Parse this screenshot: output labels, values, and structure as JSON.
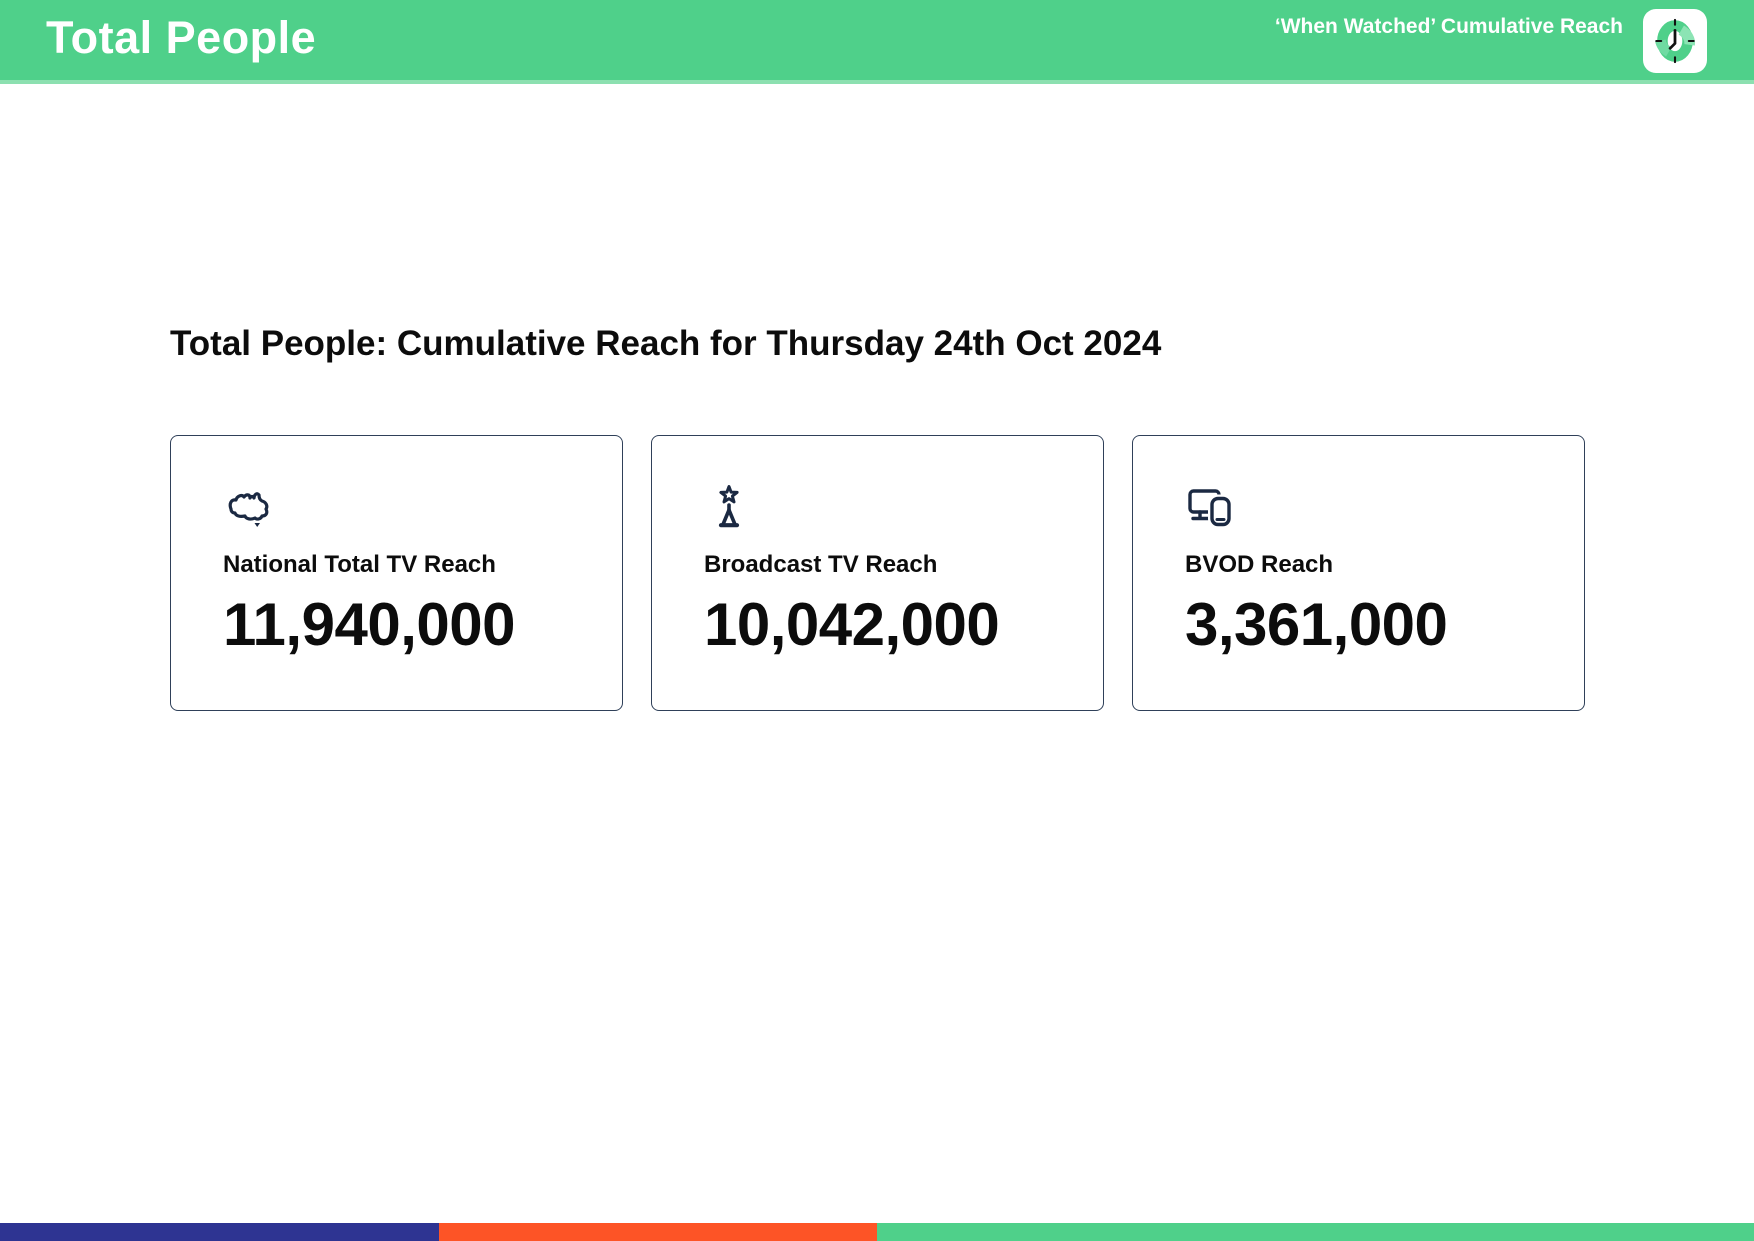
{
  "header": {
    "title": "Total People",
    "right_label": "‘When Watched’ Cumulative Reach",
    "logo_icon": "clock-icon",
    "bg_color": "#4fd08a",
    "bottom_edge_color": "#8ce0b0",
    "text_color": "#ffffff"
  },
  "main": {
    "heading": "Total People: Cumulative Reach for Thursday 24th Oct 2024",
    "cards": [
      {
        "icon": "australia-map-icon",
        "label": "National Total TV Reach",
        "value": "11,940,000"
      },
      {
        "icon": "tv-tower-icon",
        "label": "Broadcast TV Reach",
        "value": "10,042,000"
      },
      {
        "icon": "devices-icon",
        "label": "BVOD Reach",
        "value": "3,361,000"
      }
    ],
    "icon_color": "#1b2942",
    "card_border_color": "#2f4059"
  },
  "footer": {
    "segments": [
      {
        "color": "#2e3492",
        "width": "25%"
      },
      {
        "color": "#fd5426",
        "width": "25%"
      },
      {
        "color": "#4fd08a",
        "width": "50%"
      }
    ]
  }
}
